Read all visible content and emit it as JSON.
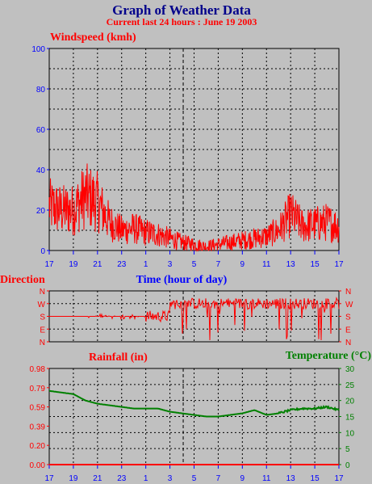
{
  "title": "Graph of Weather Data",
  "subtitle": "Current last 24 hours : June 19 2003",
  "colors": {
    "wind": "#ff0000",
    "dir": "#ff0000",
    "rain": "#ff0000",
    "temp": "#008000",
    "axis_left": "#0000ff",
    "axis_right": "#008000"
  },
  "chart_data": [
    {
      "type": "line",
      "title": "Windspeed (kmh)",
      "xlabel": "Time (hour of day)",
      "ylabel": "",
      "x_ticks": [
        "17",
        "19",
        "21",
        "23",
        "1",
        "3",
        "5",
        "7",
        "9",
        "11",
        "13",
        "15",
        "17"
      ],
      "y_ticks": [
        "0",
        "20",
        "40",
        "60",
        "80",
        "100"
      ],
      "ylim": [
        0,
        100
      ],
      "x": [
        0,
        1,
        2,
        3,
        4,
        5,
        6,
        7,
        8,
        9,
        10,
        11,
        12,
        13,
        14,
        15,
        16,
        17,
        18,
        19,
        20,
        21,
        22,
        23,
        24
      ],
      "series": [
        {
          "values": [
            22,
            20,
            20,
            27,
            24,
            14,
            10,
            11,
            9,
            8,
            6,
            4,
            3,
            2,
            3,
            4,
            5,
            6,
            7,
            10,
            18,
            12,
            13,
            14,
            12
          ]
        }
      ],
      "grid": true,
      "marker_hour": "4"
    },
    {
      "type": "line",
      "title": "Direction",
      "y_ticks": [
        "N",
        "E",
        "S",
        "W",
        "N"
      ],
      "y_ticks_right": [
        "N",
        "E",
        "S",
        "W",
        "N"
      ],
      "x": [
        0,
        2,
        4,
        6,
        8,
        8.5,
        10,
        11,
        12,
        14,
        16,
        18,
        20,
        22,
        24
      ],
      "series": [
        {
          "values": [
            "S",
            "S",
            "S",
            "S",
            "S",
            "S",
            "W",
            "W",
            "W",
            "W",
            "W",
            "W",
            "W",
            "W",
            "W"
          ]
        }
      ],
      "grid": true
    },
    {
      "type": "line",
      "title": "Rainfall (in)",
      "title_right": "Temperature (°C)",
      "x_ticks": [
        "17",
        "19",
        "21",
        "23",
        "1",
        "3",
        "5",
        "7",
        "9",
        "11",
        "13",
        "15",
        "17"
      ],
      "y_ticks": [
        "0.00",
        "0.20",
        "0.39",
        "0.59",
        "0.79",
        "0.98"
      ],
      "ylim": [
        0,
        1.18
      ],
      "y_ticks_right": [
        "0",
        "5",
        "10",
        "15",
        "20",
        "25",
        "30"
      ],
      "ylim_right": [
        0,
        30
      ],
      "x": [
        0,
        1,
        2,
        3,
        4,
        5,
        6,
        7,
        8,
        9,
        10,
        11,
        12,
        13,
        14,
        15,
        16,
        17,
        18,
        19,
        20,
        21,
        22,
        23,
        24
      ],
      "series": [
        {
          "name": "Rainfall (in)",
          "axis": "left",
          "values": [
            0,
            0,
            0,
            0,
            0,
            0,
            0,
            0,
            0,
            0,
            0,
            0,
            0,
            0,
            0,
            0,
            0,
            0,
            0,
            0,
            0,
            0,
            0,
            0,
            0
          ]
        },
        {
          "name": "Temperature (°C)",
          "axis": "right",
          "values": [
            23,
            22.5,
            22,
            20,
            19,
            18.5,
            18,
            17.5,
            17.5,
            17.5,
            16.5,
            16,
            15.5,
            15,
            15,
            15.5,
            16,
            17,
            15.5,
            16,
            17,
            17.5,
            17.5,
            18,
            17
          ]
        }
      ],
      "grid": true
    }
  ]
}
